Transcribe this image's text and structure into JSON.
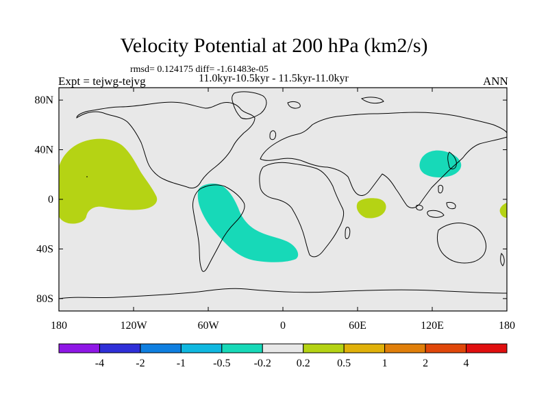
{
  "title": "Velocity Potential at 200 hPa (km2/s)",
  "rmsd_line": "rmsd= 0.124175 diff= -1.61483e-05",
  "expt_label": "Expt = tejwg-tejvg",
  "subtitle": "11.0kyr-10.5kyr - 11.5kyr-11.0kyr",
  "season": "ANN",
  "map": {
    "projection": "cylindrical-equidistant",
    "lon_range": [
      -180,
      180
    ],
    "lat_range": [
      -90,
      90
    ],
    "background_color": "#e8e8e8",
    "y_ticks": [
      {
        "lat": 80,
        "label": "80N"
      },
      {
        "lat": 40,
        "label": "40N"
      },
      {
        "lat": 0,
        "label": "0"
      },
      {
        "lat": -40,
        "label": "40S"
      },
      {
        "lat": -80,
        "label": "80S"
      }
    ],
    "x_ticks": [
      {
        "lon": -180,
        "label": "180"
      },
      {
        "lon": -120,
        "label": "120W"
      },
      {
        "lon": -60,
        "label": "60W"
      },
      {
        "lon": 0,
        "label": "0"
      },
      {
        "lon": 60,
        "label": "60E"
      },
      {
        "lon": 120,
        "label": "120E"
      },
      {
        "lon": 180,
        "label": "180"
      }
    ],
    "anomaly_regions": [
      {
        "name": "north-pacific-positive",
        "class": "0.2 to 0.5",
        "color": "#b5d314"
      },
      {
        "name": "south-america-south-atlantic-negative",
        "class": "-0.5 to -0.2",
        "color": "#17d9b8"
      },
      {
        "name": "east-asia-negative",
        "class": "-0.5 to -0.2",
        "color": "#17d9b8"
      },
      {
        "name": "indian-ocean-positive",
        "class": "0.2 to 0.5",
        "color": "#b5d314"
      },
      {
        "name": "date-line-positive",
        "class": "0.2 to 0.5",
        "color": "#b5d314"
      }
    ]
  },
  "colorbar": {
    "colors": [
      "#8f17e6",
      "#2f2fd8",
      "#0f7fe0",
      "#10b8e0",
      "#17d9b8",
      "#e8e8e8",
      "#b5d314",
      "#e0b10a",
      "#e07f0a",
      "#e0470a",
      "#e00f0f"
    ],
    "labels": [
      "-4",
      "-2",
      "-1",
      "-0.5",
      "-0.2",
      "0.2",
      "0.5",
      "1",
      "2",
      "4"
    ]
  }
}
